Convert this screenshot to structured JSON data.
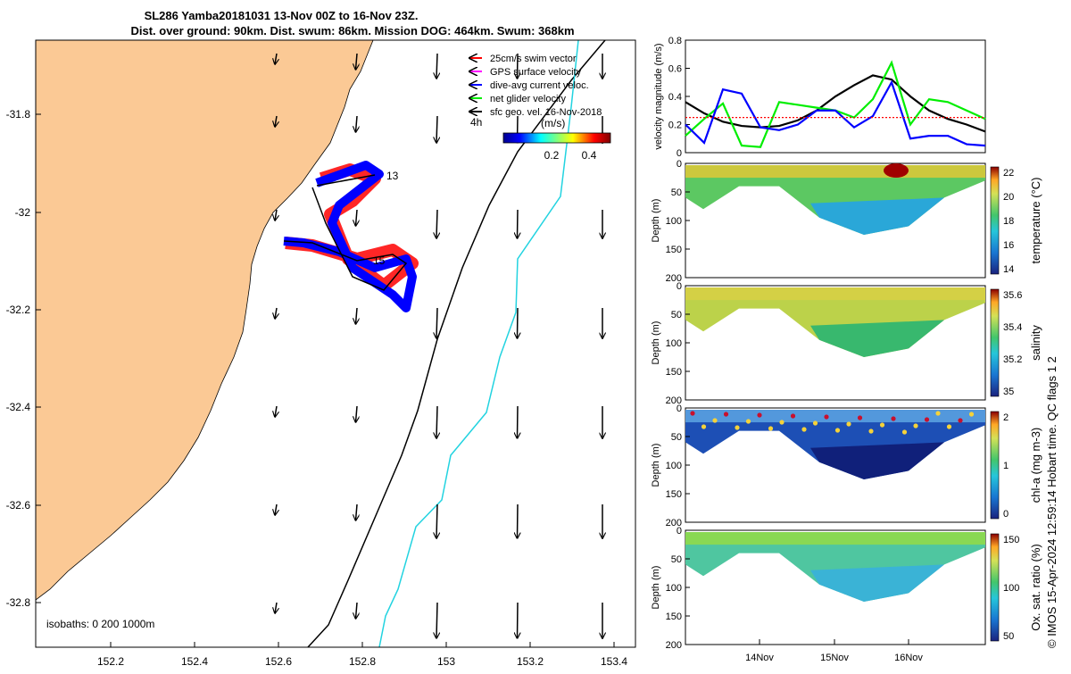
{
  "title": {
    "line1": "SL286 Yamba20181031 13-Nov 00Z to 16-Nov 23Z.",
    "line2": "Dist. over ground: 90km. Dist. swum: 86km. Mission DOG: 464km. Swum: 368km"
  },
  "map": {
    "x_ticks": [
      "152.2",
      "152.4",
      "152.6",
      "152.8",
      "153",
      "153.2",
      "153.4"
    ],
    "y_ticks": [
      "-31.8",
      "-32",
      "-32.2",
      "-32.4",
      "-32.6",
      "-32.8"
    ],
    "legend": [
      {
        "label": "25cm/s swim vector",
        "color": "#ff0000"
      },
      {
        "label": "GPS surface velocity",
        "color": "#ff00ff"
      },
      {
        "label": "dive-avg current veloc.",
        "color": "#0000ff"
      },
      {
        "label": "net glider velocity",
        "color": "#00ee00"
      },
      {
        "label": "sfc geo. vel. 16-Nov-2018",
        "color": "#000000"
      }
    ],
    "scale_label": "4h",
    "colorbar_unit": "(m/s)",
    "colorbar_ticks": [
      "0.2",
      "0.4"
    ],
    "day_labels": [
      "13",
      "15"
    ],
    "isobath_label": "isobaths: 0   200  1000m",
    "colors": {
      "land": "#fbc995",
      "isobath_200": "#000000",
      "isobath_1000": "#22d3e0",
      "swim": "#ff0000",
      "current": "#0000ff",
      "track": "#00cc00"
    }
  },
  "chart_data": [
    {
      "type": "line",
      "ylabel": "velocity magnitude (m/s)",
      "ylim": [
        0,
        0.8
      ],
      "y_ticks": [
        "0",
        "0.2",
        "0.4",
        "0.6",
        "0.8"
      ],
      "x": [
        "13-Nov 00Z",
        "13-Nov 06Z",
        "13-Nov 12Z",
        "13-Nov 18Z",
        "14-Nov 00Z",
        "14-Nov 06Z",
        "14-Nov 12Z",
        "14-Nov 18Z",
        "15-Nov 00Z",
        "15-Nov 06Z",
        "15-Nov 12Z",
        "15-Nov 18Z",
        "16-Nov 00Z",
        "16-Nov 06Z",
        "16-Nov 12Z",
        "16-Nov 18Z",
        "16-Nov 23Z"
      ],
      "series": [
        {
          "color": "#000000",
          "values": [
            0.36,
            0.28,
            0.22,
            0.19,
            0.18,
            0.19,
            0.23,
            0.3,
            0.4,
            0.48,
            0.55,
            0.52,
            0.4,
            0.3,
            0.24,
            0.2,
            0.15
          ]
        },
        {
          "color": "#00ee00",
          "values": [
            0.12,
            0.24,
            0.35,
            0.05,
            0.04,
            0.36,
            0.34,
            0.32,
            0.3,
            0.25,
            0.38,
            0.64,
            0.2,
            0.38,
            0.36,
            0.3,
            0.24
          ]
        },
        {
          "color": "#0000ff",
          "values": [
            0.2,
            0.07,
            0.45,
            0.42,
            0.18,
            0.16,
            0.2,
            0.3,
            0.3,
            0.18,
            0.26,
            0.5,
            0.1,
            0.12,
            0.12,
            0.06,
            0.05
          ]
        },
        {
          "color": "#ff0000",
          "values": [
            0.25,
            0.25,
            0.25,
            0.25,
            0.25,
            0.25,
            0.25,
            0.25,
            0.25,
            0.25,
            0.25,
            0.25,
            0.25,
            0.25,
            0.25,
            0.25,
            0.25
          ]
        }
      ]
    },
    {
      "type": "heatmap",
      "ylabel": "Depth (m)",
      "y_ticks": [
        "0",
        "50",
        "100",
        "150",
        "200"
      ],
      "colorbar_label": "temperature (°C)",
      "colorbar_ticks": [
        "14",
        "16",
        "18",
        "20",
        "22"
      ]
    },
    {
      "type": "heatmap",
      "ylabel": "Depth (m)",
      "y_ticks": [
        "0",
        "50",
        "100",
        "150",
        "200"
      ],
      "colorbar_label": "salinity",
      "colorbar_ticks": [
        "35",
        "35.2",
        "35.4",
        "35.6"
      ]
    },
    {
      "type": "heatmap",
      "ylabel": "Depth (m)",
      "y_ticks": [
        "0",
        "50",
        "100",
        "150",
        "200"
      ],
      "colorbar_label": "chl-a (mg m-3)",
      "colorbar_ticks": [
        "0",
        "1",
        "2"
      ]
    },
    {
      "type": "heatmap",
      "ylabel": "Depth (m)",
      "y_ticks": [
        "0",
        "50",
        "100",
        "150",
        "200"
      ],
      "colorbar_label": "Ox. sat. ratio (%)",
      "colorbar_ticks": [
        "50",
        "100",
        "150"
      ],
      "x_ticks": [
        "14Nov",
        "15Nov",
        "16Nov"
      ]
    }
  ],
  "side_note": "© IMOS 15-Apr-2024 12:59:14 Hobart time. QC flags 1 2"
}
